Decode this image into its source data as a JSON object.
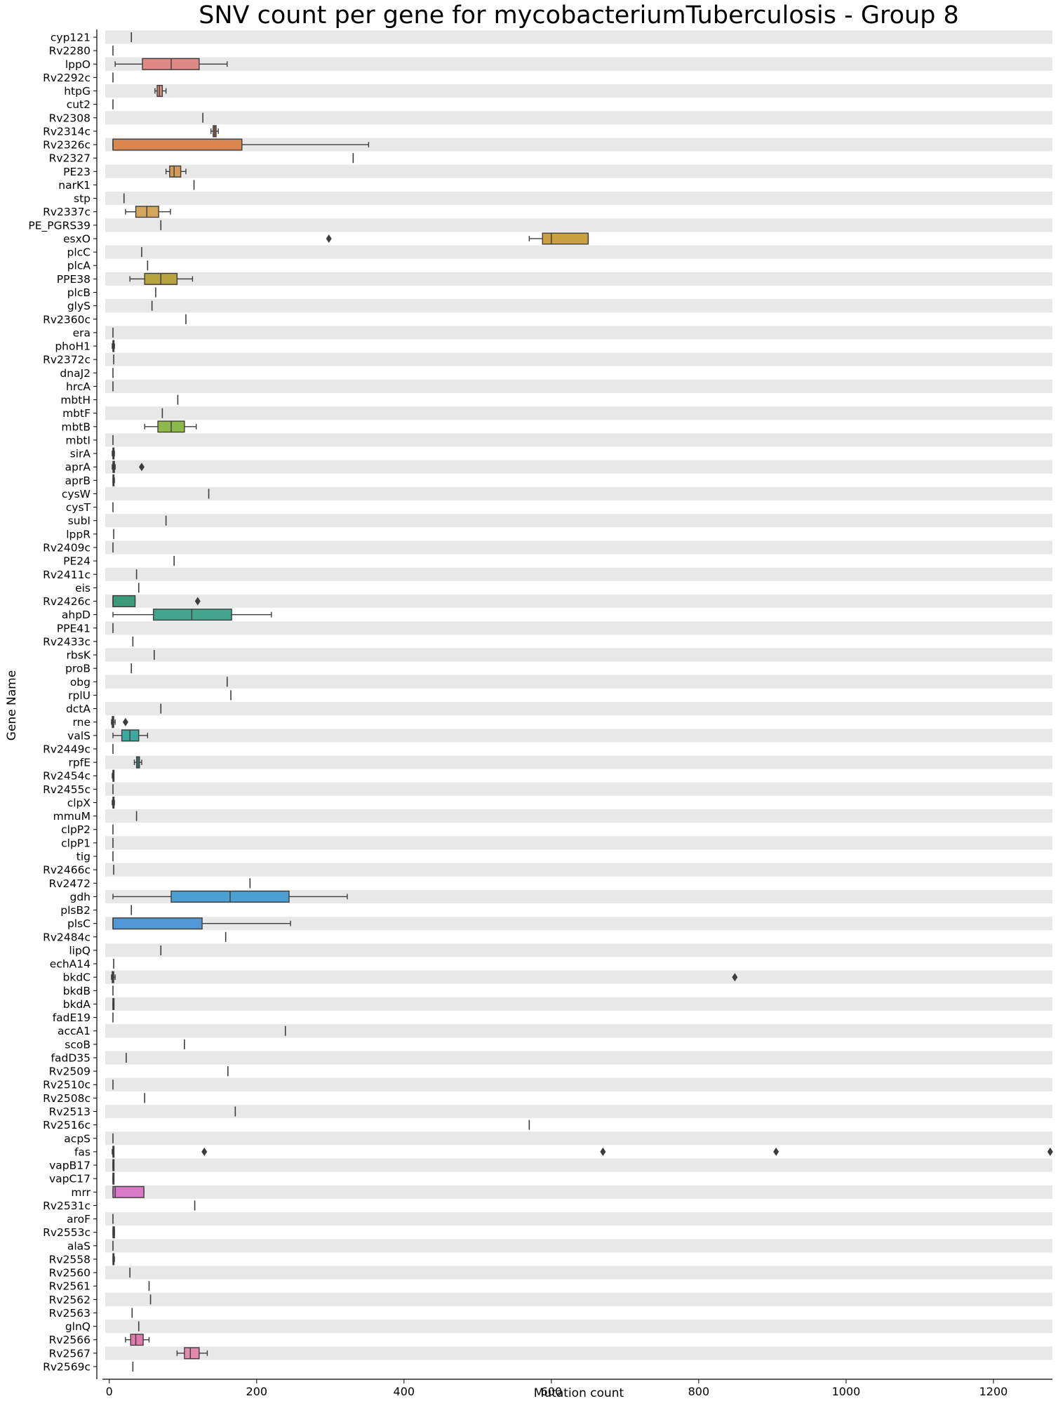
{
  "chart_data": {
    "type": "boxplot",
    "title": "SNV count per gene for mycobacteriumTuberculosis - Group 8",
    "xlabel": "Mutation count",
    "ylabel": "Gene Name",
    "xlim": [
      -15,
      1280
    ],
    "xticks": [
      0,
      200,
      400,
      600,
      800,
      1000,
      1200
    ],
    "orientation": "horizontal",
    "grid": false,
    "row_banding": true,
    "genes": [
      {
        "name": "cyp121",
        "stats": [
          30,
          30,
          30,
          30,
          30
        ],
        "outliers": [],
        "color": "#3a3a3a"
      },
      {
        "name": "Rv2280",
        "stats": [
          5,
          5,
          5,
          5,
          5
        ],
        "outliers": [],
        "color": "#3a3a3a"
      },
      {
        "name": "lppO",
        "stats": [
          8,
          45,
          84,
          122,
          160
        ],
        "outliers": [],
        "color": "#e08a87"
      },
      {
        "name": "Rv2292c",
        "stats": [
          5,
          5,
          5,
          5,
          5
        ],
        "outliers": [],
        "color": "#3a3a3a"
      },
      {
        "name": "htpG",
        "stats": [
          62,
          65,
          68,
          72,
          77
        ],
        "outliers": [],
        "color": "#d9927f"
      },
      {
        "name": "cut2",
        "stats": [
          5,
          5,
          5,
          5,
          5
        ],
        "outliers": [],
        "color": "#3a3a3a"
      },
      {
        "name": "Rv2308",
        "stats": [
          127,
          127,
          127,
          127,
          127
        ],
        "outliers": [],
        "color": "#3a3a3a"
      },
      {
        "name": "Rv2314c",
        "stats": [
          138,
          141,
          143,
          145,
          148
        ],
        "outliers": [],
        "color": "#c97a5a"
      },
      {
        "name": "Rv2326c",
        "stats": [
          5,
          5,
          5,
          180,
          352
        ],
        "outliers": [],
        "color": "#d9864f"
      },
      {
        "name": "Rv2327",
        "stats": [
          331,
          331,
          331,
          331,
          331
        ],
        "outliers": [],
        "color": "#3a3a3a"
      },
      {
        "name": "PE23",
        "stats": [
          77,
          82,
          88,
          97,
          104
        ],
        "outliers": [],
        "color": "#d39a5a"
      },
      {
        "name": "narK1",
        "stats": [
          115,
          115,
          115,
          115,
          115
        ],
        "outliers": [],
        "color": "#3a3a3a"
      },
      {
        "name": "stp",
        "stats": [
          20,
          20,
          20,
          20,
          20
        ],
        "outliers": [],
        "color": "#3a3a3a"
      },
      {
        "name": "Rv2337c",
        "stats": [
          22,
          36,
          51,
          67,
          83
        ],
        "outliers": [],
        "color": "#d3a45c"
      },
      {
        "name": "PE_PGRS39",
        "stats": [
          70,
          70,
          70,
          70,
          70
        ],
        "outliers": [],
        "color": "#3a3a3a"
      },
      {
        "name": "esxO",
        "stats": [
          570,
          588,
          600,
          650,
          650
        ],
        "outliers": [
          298
        ],
        "color": "#c9a13f"
      },
      {
        "name": "plcC",
        "stats": [
          44,
          44,
          44,
          44,
          44
        ],
        "outliers": [],
        "color": "#3a3a3a"
      },
      {
        "name": "plcA",
        "stats": [
          52,
          52,
          52,
          52,
          52
        ],
        "outliers": [],
        "color": "#3a3a3a"
      },
      {
        "name": "PPE38",
        "stats": [
          28,
          48,
          70,
          92,
          113
        ],
        "outliers": [],
        "color": "#b8a43e"
      },
      {
        "name": "plcB",
        "stats": [
          63,
          63,
          63,
          63,
          63
        ],
        "outliers": [],
        "color": "#3a3a3a"
      },
      {
        "name": "glyS",
        "stats": [
          58,
          58,
          58,
          58,
          58
        ],
        "outliers": [],
        "color": "#3a3a3a"
      },
      {
        "name": "Rv2360c",
        "stats": [
          104,
          104,
          104,
          104,
          104
        ],
        "outliers": [],
        "color": "#3a3a3a"
      },
      {
        "name": "era",
        "stats": [
          5,
          5,
          5,
          5,
          5
        ],
        "outliers": [],
        "color": "#3a3a3a"
      },
      {
        "name": "phoH1",
        "stats": [
          4,
          5,
          5,
          6,
          7
        ],
        "outliers": [],
        "color": "#3a3a3a"
      },
      {
        "name": "Rv2372c",
        "stats": [
          6,
          6,
          6,
          6,
          6
        ],
        "outliers": [],
        "color": "#3a3a3a"
      },
      {
        "name": "dnaJ2",
        "stats": [
          5,
          5,
          5,
          5,
          5
        ],
        "outliers": [],
        "color": "#3a3a3a"
      },
      {
        "name": "hrcA",
        "stats": [
          5,
          5,
          5,
          5,
          5
        ],
        "outliers": [],
        "color": "#3a3a3a"
      },
      {
        "name": "mbtH",
        "stats": [
          93,
          93,
          93,
          93,
          93
        ],
        "outliers": [],
        "color": "#3a3a3a"
      },
      {
        "name": "mbtF",
        "stats": [
          72,
          72,
          72,
          72,
          72
        ],
        "outliers": [],
        "color": "#3a3a3a"
      },
      {
        "name": "mbtB",
        "stats": [
          48,
          66,
          84,
          102,
          118
        ],
        "outliers": [],
        "color": "#8db84a"
      },
      {
        "name": "mbtI",
        "stats": [
          5,
          5,
          5,
          5,
          5
        ],
        "outliers": [],
        "color": "#3a3a3a"
      },
      {
        "name": "sirA",
        "stats": [
          4,
          5,
          5,
          6,
          7
        ],
        "outliers": [],
        "color": "#3a3a3a"
      },
      {
        "name": "aprA",
        "stats": [
          4,
          5,
          6,
          7,
          8
        ],
        "outliers": [
          44
        ],
        "color": "#3a3a3a"
      },
      {
        "name": "aprB",
        "stats": [
          5,
          5,
          6,
          6,
          7
        ],
        "outliers": [],
        "color": "#3a3a3a"
      },
      {
        "name": "cysW",
        "stats": [
          135,
          135,
          135,
          135,
          135
        ],
        "outliers": [],
        "color": "#3a3a3a"
      },
      {
        "name": "cysT",
        "stats": [
          5,
          5,
          5,
          5,
          5
        ],
        "outliers": [],
        "color": "#3a3a3a"
      },
      {
        "name": "subI",
        "stats": [
          77,
          77,
          77,
          77,
          77
        ],
        "outliers": [],
        "color": "#3a3a3a"
      },
      {
        "name": "lppR",
        "stats": [
          6,
          6,
          6,
          6,
          6
        ],
        "outliers": [],
        "color": "#3a3a3a"
      },
      {
        "name": "Rv2409c",
        "stats": [
          5,
          5,
          5,
          5,
          5
        ],
        "outliers": [],
        "color": "#3a3a3a"
      },
      {
        "name": "PE24",
        "stats": [
          88,
          88,
          88,
          88,
          88
        ],
        "outliers": [],
        "color": "#3a3a3a"
      },
      {
        "name": "Rv2411c",
        "stats": [
          37,
          37,
          37,
          37,
          37
        ],
        "outliers": [],
        "color": "#3a3a3a"
      },
      {
        "name": "eis",
        "stats": [
          40,
          40,
          40,
          40,
          40
        ],
        "outliers": [],
        "color": "#3a3a3a"
      },
      {
        "name": "Rv2426c",
        "stats": [
          5,
          5,
          5,
          35,
          35
        ],
        "outliers": [
          120
        ],
        "color": "#3a9a7a"
      },
      {
        "name": "ahpD",
        "stats": [
          5,
          60,
          112,
          166,
          220
        ],
        "outliers": [],
        "color": "#43a68c"
      },
      {
        "name": "PPE41",
        "stats": [
          5,
          5,
          5,
          5,
          5
        ],
        "outliers": [],
        "color": "#3a3a3a"
      },
      {
        "name": "Rv2433c",
        "stats": [
          32,
          32,
          32,
          32,
          32
        ],
        "outliers": [],
        "color": "#3a3a3a"
      },
      {
        "name": "rbsK",
        "stats": [
          61,
          61,
          61,
          61,
          61
        ],
        "outliers": [],
        "color": "#3a3a3a"
      },
      {
        "name": "proB",
        "stats": [
          30,
          30,
          30,
          30,
          30
        ],
        "outliers": [],
        "color": "#3a3a3a"
      },
      {
        "name": "obg",
        "stats": [
          160,
          160,
          160,
          160,
          160
        ],
        "outliers": [],
        "color": "#3a3a3a"
      },
      {
        "name": "rplU",
        "stats": [
          165,
          165,
          165,
          165,
          165
        ],
        "outliers": [],
        "color": "#3a3a3a"
      },
      {
        "name": "dctA",
        "stats": [
          70,
          70,
          70,
          70,
          70
        ],
        "outliers": [],
        "color": "#3a3a3a"
      },
      {
        "name": "rne",
        "stats": [
          3,
          4,
          5,
          6,
          8
        ],
        "outliers": [
          22
        ],
        "color": "#3a3a3a"
      },
      {
        "name": "valS",
        "stats": [
          5,
          17,
          28,
          40,
          52
        ],
        "outliers": [],
        "color": "#3ea8a0"
      },
      {
        "name": "Rv2449c",
        "stats": [
          5,
          5,
          5,
          5,
          5
        ],
        "outliers": [],
        "color": "#3a3a3a"
      },
      {
        "name": "rpfE",
        "stats": [
          34,
          37,
          39,
          41,
          44
        ],
        "outliers": [],
        "color": "#3ea3a8"
      },
      {
        "name": "Rv2454c",
        "stats": [
          4,
          5,
          5,
          6,
          6
        ],
        "outliers": [],
        "color": "#3a3a3a"
      },
      {
        "name": "Rv2455c",
        "stats": [
          5,
          5,
          5,
          5,
          5
        ],
        "outliers": [],
        "color": "#3a3a3a"
      },
      {
        "name": "clpX",
        "stats": [
          4,
          5,
          5,
          6,
          7
        ],
        "outliers": [],
        "color": "#3a3a3a"
      },
      {
        "name": "mmuM",
        "stats": [
          37,
          37,
          37,
          37,
          37
        ],
        "outliers": [],
        "color": "#3a3a3a"
      },
      {
        "name": "clpP2",
        "stats": [
          5,
          5,
          5,
          5,
          5
        ],
        "outliers": [],
        "color": "#3a3a3a"
      },
      {
        "name": "clpP1",
        "stats": [
          5,
          5,
          5,
          5,
          5
        ],
        "outliers": [],
        "color": "#3a3a3a"
      },
      {
        "name": "tig",
        "stats": [
          5,
          5,
          5,
          5,
          5
        ],
        "outliers": [],
        "color": "#3a3a3a"
      },
      {
        "name": "Rv2466c",
        "stats": [
          6,
          6,
          6,
          6,
          6
        ],
        "outliers": [],
        "color": "#3a3a3a"
      },
      {
        "name": "Rv2472",
        "stats": [
          191,
          191,
          191,
          191,
          191
        ],
        "outliers": [],
        "color": "#3a3a3a"
      },
      {
        "name": "gdh",
        "stats": [
          5,
          84,
          164,
          244,
          323
        ],
        "outliers": [],
        "color": "#4a9fd3"
      },
      {
        "name": "plsB2",
        "stats": [
          30,
          30,
          30,
          30,
          30
        ],
        "outliers": [],
        "color": "#3a3a3a"
      },
      {
        "name": "plsC",
        "stats": [
          5,
          5,
          5,
          126,
          246
        ],
        "outliers": [],
        "color": "#5098d6"
      },
      {
        "name": "Rv2484c",
        "stats": [
          158,
          158,
          158,
          158,
          158
        ],
        "outliers": [],
        "color": "#3a3a3a"
      },
      {
        "name": "lipQ",
        "stats": [
          70,
          70,
          70,
          70,
          70
        ],
        "outliers": [],
        "color": "#3a3a3a"
      },
      {
        "name": "echA14",
        "stats": [
          6,
          6,
          6,
          6,
          6
        ],
        "outliers": [],
        "color": "#3a3a3a"
      },
      {
        "name": "bkdC",
        "stats": [
          3,
          4,
          5,
          6,
          8
        ],
        "outliers": [
          849
        ],
        "color": "#3a3a3a"
      },
      {
        "name": "bkdB",
        "stats": [
          5,
          5,
          5,
          5,
          5
        ],
        "outliers": [],
        "color": "#3a3a3a"
      },
      {
        "name": "bkdA",
        "stats": [
          5,
          5,
          5,
          6,
          6
        ],
        "outliers": [],
        "color": "#3a3a3a"
      },
      {
        "name": "fadE19",
        "stats": [
          5,
          5,
          5,
          5,
          5
        ],
        "outliers": [],
        "color": "#3a3a3a"
      },
      {
        "name": "accA1",
        "stats": [
          239,
          239,
          239,
          239,
          239
        ],
        "outliers": [],
        "color": "#3a3a3a"
      },
      {
        "name": "scoB",
        "stats": [
          102,
          102,
          102,
          102,
          102
        ],
        "outliers": [],
        "color": "#3a3a3a"
      },
      {
        "name": "fadD35",
        "stats": [
          23,
          23,
          23,
          23,
          23
        ],
        "outliers": [],
        "color": "#3a3a3a"
      },
      {
        "name": "Rv2509",
        "stats": [
          161,
          161,
          161,
          161,
          161
        ],
        "outliers": [],
        "color": "#3a3a3a"
      },
      {
        "name": "Rv2510c",
        "stats": [
          5,
          5,
          5,
          5,
          5
        ],
        "outliers": [],
        "color": "#3a3a3a"
      },
      {
        "name": "Rv2508c",
        "stats": [
          48,
          48,
          48,
          48,
          48
        ],
        "outliers": [],
        "color": "#3a3a3a"
      },
      {
        "name": "Rv2513",
        "stats": [
          171,
          171,
          171,
          171,
          171
        ],
        "outliers": [],
        "color": "#3a3a3a"
      },
      {
        "name": "Rv2516c",
        "stats": [
          570,
          570,
          570,
          570,
          570
        ],
        "outliers": [],
        "color": "#3a3a3a"
      },
      {
        "name": "acpS",
        "stats": [
          5,
          5,
          5,
          5,
          5
        ],
        "outliers": [],
        "color": "#3a3a3a"
      },
      {
        "name": "fas",
        "stats": [
          4,
          5,
          5,
          6,
          6
        ],
        "outliers": [
          129,
          670,
          905,
          1277
        ],
        "color": "#3a3a3a"
      },
      {
        "name": "vapB17",
        "stats": [
          5,
          5,
          5,
          6,
          6
        ],
        "outliers": [],
        "color": "#3a3a3a"
      },
      {
        "name": "vapC17",
        "stats": [
          5,
          5,
          5,
          6,
          6
        ],
        "outliers": [],
        "color": "#3a3a3a"
      },
      {
        "name": "mrr",
        "stats": [
          5,
          5,
          8,
          47,
          47
        ],
        "outliers": [],
        "color": "#d97ac6"
      },
      {
        "name": "Rv2531c",
        "stats": [
          116,
          116,
          116,
          116,
          116
        ],
        "outliers": [],
        "color": "#3a3a3a"
      },
      {
        "name": "aroF",
        "stats": [
          5,
          5,
          5,
          5,
          5
        ],
        "outliers": [],
        "color": "#3a3a3a"
      },
      {
        "name": "Rv2553c",
        "stats": [
          5,
          5,
          6,
          7,
          7
        ],
        "outliers": [],
        "color": "#3a3a3a"
      },
      {
        "name": "alaS",
        "stats": [
          5,
          5,
          5,
          5,
          5
        ],
        "outliers": [],
        "color": "#3a3a3a"
      },
      {
        "name": "Rv2558",
        "stats": [
          5,
          5,
          6,
          6,
          7
        ],
        "outliers": [],
        "color": "#3a3a3a"
      },
      {
        "name": "Rv2560",
        "stats": [
          28,
          28,
          28,
          28,
          28
        ],
        "outliers": [],
        "color": "#3a3a3a"
      },
      {
        "name": "Rv2561",
        "stats": [
          54,
          54,
          54,
          54,
          54
        ],
        "outliers": [],
        "color": "#3a3a3a"
      },
      {
        "name": "Rv2562",
        "stats": [
          56,
          56,
          56,
          56,
          56
        ],
        "outliers": [],
        "color": "#3a3a3a"
      },
      {
        "name": "Rv2563",
        "stats": [
          31,
          31,
          31,
          31,
          31
        ],
        "outliers": [],
        "color": "#3a3a3a"
      },
      {
        "name": "glnQ",
        "stats": [
          40,
          40,
          40,
          40,
          40
        ],
        "outliers": [],
        "color": "#3a3a3a"
      },
      {
        "name": "Rv2566",
        "stats": [
          22,
          29,
          36,
          46,
          54
        ],
        "outliers": [],
        "color": "#e07aa8"
      },
      {
        "name": "Rv2567",
        "stats": [
          92,
          102,
          110,
          122,
          133
        ],
        "outliers": [],
        "color": "#e28aab"
      },
      {
        "name": "Rv2569c",
        "stats": [
          32,
          32,
          32,
          32,
          32
        ],
        "outliers": [],
        "color": "#3a3a3a"
      }
    ]
  }
}
